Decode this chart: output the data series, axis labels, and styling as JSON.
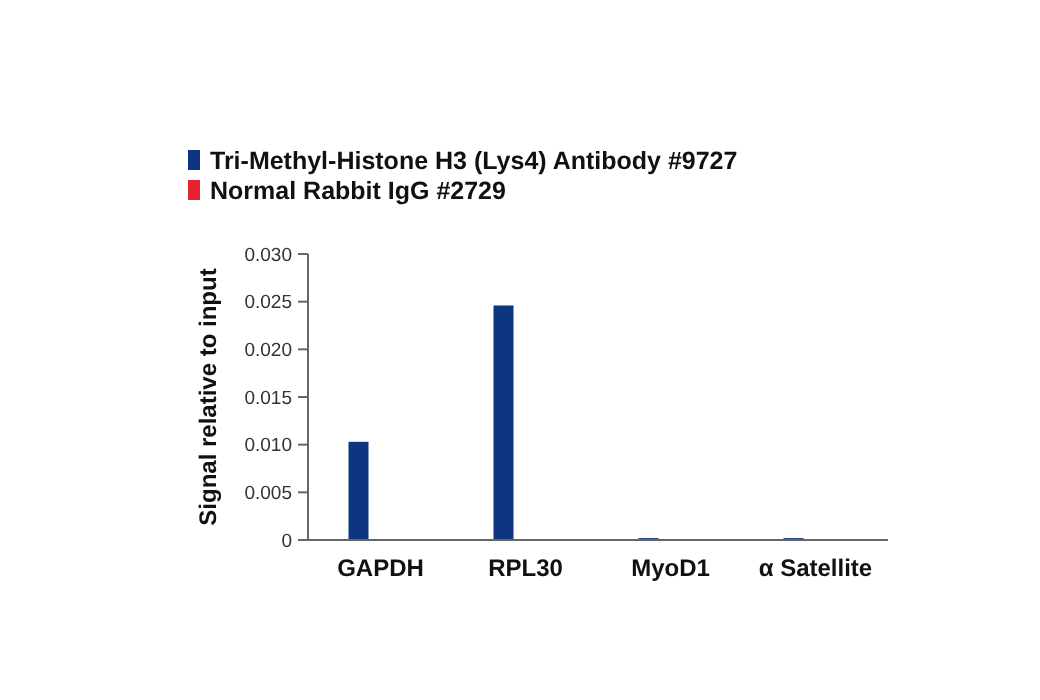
{
  "chart_data": {
    "type": "bar",
    "ylabel": "Signal relative to input",
    "categories": [
      "GAPDH",
      "RPL30",
      "MyoD1",
      "α Satellite"
    ],
    "series": [
      {
        "name": "Tri-Methyl-Histone H3 (Lys4) Antibody #9727",
        "color": "#0d3580",
        "values": [
          0.0103,
          0.0246,
          0.0002,
          0.0002
        ]
      },
      {
        "name": "Normal Rabbit IgG #2729",
        "color": "#e8212e",
        "values": [
          0,
          0,
          0,
          0
        ]
      }
    ],
    "ylim": [
      0,
      0.03
    ],
    "yticks": [
      "0",
      {
        "value": 0.005,
        "label": "0.005"
      },
      {
        "value": 0.01,
        "label": "0.010"
      },
      {
        "value": 0.015,
        "label": "0.015"
      },
      {
        "value": 0.02,
        "label": "0.020"
      },
      {
        "value": 0.025,
        "label": "0.025"
      },
      {
        "value": 0.03,
        "label": "0.030"
      }
    ],
    "grid": false,
    "legend": "top left"
  }
}
